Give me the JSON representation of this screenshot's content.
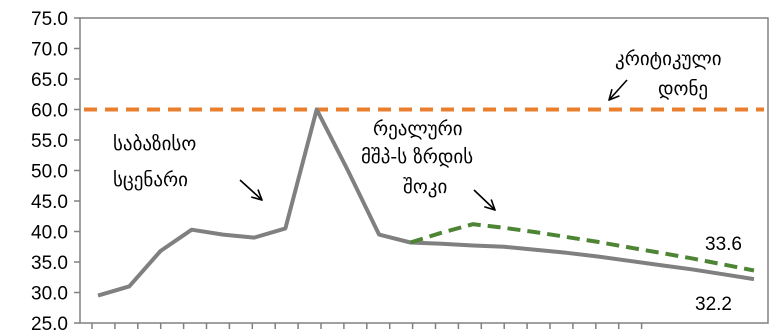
{
  "chart_data": {
    "type": "line",
    "ylim": [
      25,
      75
    ],
    "y_ticks": [
      "25.0",
      "30.0",
      "35.0",
      "40.0",
      "45.0",
      "50.0",
      "55.0",
      "60.0",
      "65.0",
      "70.0",
      "75.0"
    ],
    "x_categories": 24,
    "grid": false,
    "series": [
      {
        "key": "baseline",
        "color": "#808080",
        "style": "solid",
        "values": [
          29.5,
          31.0,
          36.8,
          40.3,
          39.5,
          39.0,
          40.5,
          60.0,
          50.0,
          39.5,
          38.2,
          38.0,
          37.7,
          37.5,
          37.0,
          36.5,
          35.9,
          35.2,
          34.5,
          33.8,
          33.0,
          32.2
        ]
      },
      {
        "key": "shock",
        "color": "#4E8535",
        "style": "dashed",
        "start_index": 10,
        "values": [
          38.2,
          39.8,
          41.2,
          40.6,
          39.9,
          39.1,
          38.3,
          37.4,
          36.5,
          35.6,
          34.6,
          33.6
        ]
      },
      {
        "key": "critical",
        "color": "#E97E2C",
        "style": "dashed",
        "value": 60.0
      }
    ],
    "annotations": {
      "baseline_line1": "საბაზისო",
      "baseline_line2": "სცენარი",
      "shock_line1": "რეალური",
      "shock_line2": "მშპ-ს ზრდის",
      "shock_line3": "შოკი",
      "critical_line1": "კრიტიკული",
      "critical_line2": "დონე"
    },
    "data_labels": {
      "shock_end": "33.6",
      "baseline_end": "32.2"
    }
  }
}
